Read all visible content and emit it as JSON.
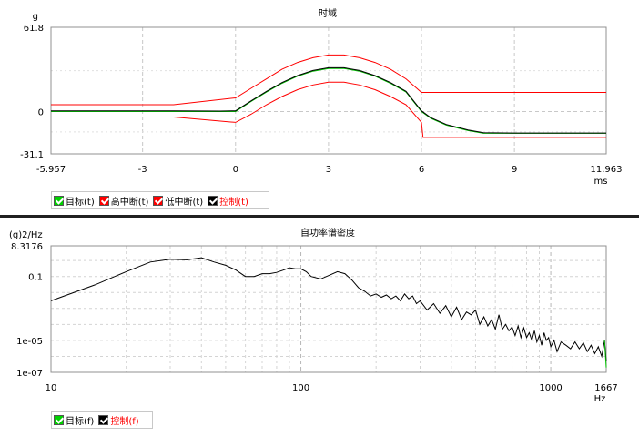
{
  "chart_data": [
    {
      "type": "line",
      "title": "时域",
      "ylabel": "g",
      "xlabel": "ms",
      "xlim": [
        -5.957,
        11.963
      ],
      "ylim": [
        -31.1,
        61.8
      ],
      "x_ticks": [
        "-5.957",
        "-3",
        "0",
        "3",
        "6",
        "9",
        "11.963"
      ],
      "y_ticks": [
        "61.8",
        "0",
        "-31.1"
      ],
      "grid": true,
      "legend_position": "bottom-left",
      "series": [
        {
          "name": "目标(t)",
          "color": "#00c000",
          "x": [
            -5.957,
            -0.5,
            0,
            0.5,
            1,
            1.5,
            2,
            2.5,
            3,
            3.5,
            4,
            4.5,
            5,
            5.5,
            6,
            6.3,
            6.8,
            7.5,
            8,
            9,
            10,
            11.963
          ],
          "y": [
            0,
            0,
            0,
            7.3,
            14.3,
            20.7,
            25.9,
            29.6,
            31.6,
            31.6,
            29.6,
            25.9,
            20.7,
            14.3,
            0,
            -5,
            -10,
            -14,
            -16,
            -16,
            -16,
            -16
          ]
        },
        {
          "name": "高中断(t)",
          "color": "#ff0000",
          "x": [
            -5.957,
            -2,
            0,
            0.5,
            1,
            1.5,
            2,
            2.5,
            3,
            3.5,
            4,
            4.5,
            5,
            5.5,
            6,
            6.1,
            8,
            11.963
          ],
          "y": [
            5,
            5,
            10,
            17,
            24,
            31,
            36,
            39.5,
            41.5,
            41.5,
            39.5,
            36,
            31,
            24,
            14,
            14,
            14,
            14
          ]
        },
        {
          "name": "低中断(t)",
          "color": "#ff0000",
          "x": [
            -5.957,
            -2,
            0,
            0.5,
            1,
            1.5,
            2,
            2.5,
            3,
            3.5,
            4,
            4.5,
            5,
            5.5,
            6,
            6.05,
            8,
            11.963
          ],
          "y": [
            -4,
            -4,
            -8,
            -2,
            5,
            11,
            16,
            19.5,
            21.5,
            21.5,
            19.5,
            16,
            11,
            5,
            -8,
            -19,
            -19,
            -19
          ]
        },
        {
          "name": "控制(t)",
          "color": "#000000",
          "x": [
            -5.957,
            -2,
            -0.5,
            0,
            0.5,
            1,
            1.5,
            2,
            2.5,
            3,
            3.5,
            4,
            4.5,
            5,
            5.5,
            6,
            6.3,
            6.8,
            7.5,
            8,
            9,
            10,
            11.963
          ],
          "y": [
            0.5,
            0.5,
            0.3,
            0.5,
            7.8,
            14.8,
            21.2,
            26.4,
            30.1,
            32.1,
            32.1,
            30.1,
            26.4,
            21.2,
            14.8,
            0.5,
            -4.5,
            -9.5,
            -13.5,
            -15.5,
            -15.8,
            -15.8,
            -15.8
          ]
        }
      ],
      "legend": [
        {
          "label": "目标(t)",
          "color": "#00d000",
          "text_color": "#000000"
        },
        {
          "label": "高中断(t)",
          "color": "#ff0000",
          "text_color": "#000000"
        },
        {
          "label": "低中断(t)",
          "color": "#ff0000",
          "text_color": "#000000"
        },
        {
          "label": "控制(t)",
          "color": "#000000",
          "text_color": "#ff0000"
        }
      ]
    },
    {
      "type": "line",
      "title": "自功率谱密度",
      "ylabel": "(g)2/Hz",
      "xlabel": "Hz",
      "x_scale": "log",
      "y_scale": "log",
      "xlim": [
        10,
        1667
      ],
      "ylim": [
        1e-07,
        8.3176
      ],
      "x_ticks": [
        "10",
        "100",
        "1000",
        "1667"
      ],
      "y_ticks": [
        "8.3176",
        "0.1",
        "1e-05",
        "1e-07"
      ],
      "grid": true,
      "legend_position": "bottom-left",
      "series": [
        {
          "name": "目标(f)",
          "color": "#00c000",
          "x": [
            1640,
            1667
          ],
          "y": [
            1e-05,
            2e-07
          ]
        },
        {
          "name": "控制(f)",
          "color": "#000000",
          "x": [
            10,
            15,
            20,
            25,
            30,
            35,
            40,
            45,
            50,
            55,
            60,
            65,
            70,
            75,
            80,
            85,
            90,
            95,
            100,
            105,
            110,
            120,
            130,
            140,
            150,
            160,
            170,
            180,
            190,
            200,
            210,
            220,
            230,
            240,
            250,
            260,
            270,
            280,
            290,
            300,
            320,
            340,
            360,
            380,
            400,
            420,
            440,
            460,
            480,
            500,
            520,
            540,
            560,
            580,
            600,
            620,
            640,
            660,
            680,
            700,
            720,
            740,
            760,
            780,
            800,
            820,
            840,
            860,
            880,
            900,
            920,
            940,
            960,
            980,
            1000,
            1030,
            1060,
            1100,
            1150,
            1200,
            1250,
            1300,
            1350,
            1400,
            1450,
            1500,
            1550,
            1600,
            1640,
            1667
          ],
          "y": [
            0.003,
            0.03,
            0.2,
            0.8,
            1.2,
            1.1,
            1.5,
            0.8,
            0.5,
            0.25,
            0.1,
            0.1,
            0.15,
            0.15,
            0.18,
            0.25,
            0.35,
            0.3,
            0.3,
            0.2,
            0.1,
            0.07,
            0.12,
            0.2,
            0.15,
            0.06,
            0.02,
            0.012,
            0.006,
            0.008,
            0.005,
            0.007,
            0.004,
            0.006,
            0.003,
            0.008,
            0.004,
            0.006,
            0.002,
            0.003,
            0.0008,
            0.002,
            0.0005,
            0.0015,
            0.0003,
            0.0012,
            0.0002,
            0.0006,
            0.0004,
            0.0008,
            0.0001,
            0.0003,
            8e-05,
            0.0002,
            5e-05,
            0.0004,
            5e-05,
            0.0001,
            4e-05,
            7e-05,
            2e-05,
            8e-05,
            1.5e-05,
            6e-05,
            1.5e-05,
            3e-05,
            1e-05,
            4e-05,
            8e-06,
            2e-05,
            5e-06,
            3e-05,
            1e-05,
            1.5e-05,
            4e-06,
            1e-05,
            2e-06,
            8e-06,
            5e-06,
            3e-06,
            8e-06,
            3e-06,
            7e-06,
            2e-06,
            5e-06,
            1.5e-06,
            4e-06,
            1e-06,
            1e-05,
            5e-07
          ]
        }
      ],
      "legend": [
        {
          "label": "目标(f)",
          "color": "#00d000",
          "text_color": "#000000"
        },
        {
          "label": "控制(f)",
          "color": "#000000",
          "text_color": "#ff0000"
        }
      ]
    }
  ]
}
